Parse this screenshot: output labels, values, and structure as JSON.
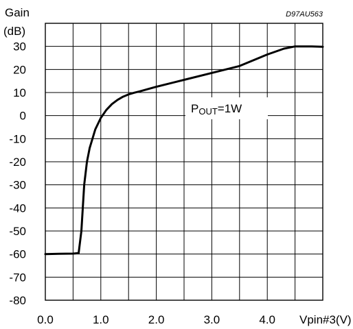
{
  "chart_data": {
    "type": "line",
    "figure_code": "D97AU563",
    "ylabel_line1": "Gain",
    "ylabel_line2": "(dB)",
    "xlabel": "Vpin#3(V)",
    "annotation": {
      "prefix": "P",
      "subscript": "OUT",
      "suffix": "=1W"
    },
    "xlim": [
      0.0,
      5.0
    ],
    "ylim": [
      -80,
      30
    ],
    "x_ticks": [
      {
        "value": 0.0,
        "label": "0.0"
      },
      {
        "value": 1.0,
        "label": "1.0"
      },
      {
        "value": 2.0,
        "label": "2.0"
      },
      {
        "value": 3.0,
        "label": "3.0"
      },
      {
        "value": 4.0,
        "label": "4.0"
      }
    ],
    "y_ticks": [
      {
        "value": 30,
        "label": "30"
      },
      {
        "value": 20,
        "label": "20"
      },
      {
        "value": 10,
        "label": "10"
      },
      {
        "value": 0,
        "label": "0"
      },
      {
        "value": -10,
        "label": "-10"
      },
      {
        "value": -20,
        "label": "-20"
      },
      {
        "value": -30,
        "label": "-30"
      },
      {
        "value": -40,
        "label": "-40"
      },
      {
        "value": -50,
        "label": "-50"
      },
      {
        "value": -60,
        "label": "-60"
      },
      {
        "value": -70,
        "label": "-70"
      },
      {
        "value": -80,
        "label": "-80"
      }
    ],
    "grid": true,
    "x_grid_step": 0.5,
    "y_grid_step": 10,
    "series": [
      {
        "x": [
          0.0,
          0.25,
          0.5,
          0.6,
          0.65,
          0.7,
          0.75,
          0.8,
          0.9,
          1.0,
          1.1,
          1.2,
          1.3,
          1.4,
          1.5,
          1.6,
          1.7,
          2.0,
          2.5,
          3.0,
          3.5,
          4.0,
          4.3,
          4.5,
          4.8,
          5.0
        ],
        "y": [
          -60,
          -59.9,
          -59.8,
          -59.6,
          -50,
          -30,
          -20,
          -14,
          -6,
          -1,
          2.5,
          5,
          6.8,
          8.2,
          9.2,
          9.9,
          10.5,
          12.5,
          15.5,
          18.5,
          21.5,
          26.5,
          29,
          30,
          30,
          29.8
        ]
      }
    ]
  }
}
